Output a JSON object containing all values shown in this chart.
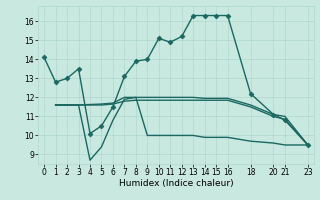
{
  "xlabel": "Humidex (Indice chaleur)",
  "background_color": "#c8e8e0",
  "grid_color": "#b0d8d0",
  "line_color": "#1a6860",
  "xlim": [
    -0.5,
    23.5
  ],
  "ylim": [
    8.5,
    16.8
  ],
  "yticks": [
    9,
    10,
    11,
    12,
    13,
    14,
    15,
    16
  ],
  "xticks": [
    0,
    1,
    2,
    3,
    4,
    5,
    6,
    7,
    8,
    9,
    10,
    11,
    12,
    13,
    14,
    15,
    16,
    18,
    20,
    21,
    23
  ],
  "lines": [
    {
      "x": [
        0,
        1,
        2,
        3,
        4,
        5,
        6,
        7,
        8,
        9,
        10,
        11,
        12,
        13,
        14,
        15,
        16,
        18,
        20,
        21,
        23
      ],
      "y": [
        14.1,
        12.8,
        13.0,
        13.5,
        10.1,
        10.5,
        11.5,
        13.1,
        13.9,
        14.0,
        15.1,
        14.9,
        15.2,
        16.3,
        16.3,
        16.3,
        16.3,
        12.2,
        11.1,
        10.8,
        9.5
      ],
      "marker": "D",
      "markersize": 2.5,
      "linewidth": 1.0
    },
    {
      "x": [
        1,
        2,
        3,
        4,
        5,
        6,
        7,
        8,
        9,
        10,
        11,
        12,
        13,
        14,
        15,
        16,
        18,
        20,
        21,
        23
      ],
      "y": [
        11.6,
        11.6,
        11.6,
        8.7,
        9.4,
        10.8,
        11.9,
        12.0,
        10.0,
        10.0,
        10.0,
        10.0,
        10.0,
        9.9,
        9.9,
        9.9,
        9.7,
        9.6,
        9.5,
        9.5
      ],
      "marker": null,
      "markersize": 0,
      "linewidth": 1.0
    },
    {
      "x": [
        1,
        2,
        3,
        5,
        6,
        7,
        8,
        9,
        10,
        11,
        12,
        13,
        14,
        15,
        16,
        18,
        20,
        21,
        23
      ],
      "y": [
        11.6,
        11.6,
        11.6,
        11.65,
        11.7,
        12.0,
        12.0,
        12.0,
        12.0,
        12.0,
        12.0,
        12.0,
        11.95,
        11.95,
        11.95,
        11.6,
        11.1,
        11.0,
        9.5
      ],
      "marker": null,
      "markersize": 0,
      "linewidth": 1.0
    },
    {
      "x": [
        1,
        2,
        3,
        5,
        6,
        7,
        8,
        9,
        10,
        11,
        12,
        13,
        14,
        15,
        16,
        18,
        20,
        21,
        23
      ],
      "y": [
        11.6,
        11.6,
        11.6,
        11.6,
        11.65,
        11.8,
        11.85,
        11.85,
        11.85,
        11.85,
        11.85,
        11.85,
        11.85,
        11.85,
        11.85,
        11.5,
        11.0,
        10.85,
        9.5
      ],
      "marker": null,
      "markersize": 0,
      "linewidth": 1.0
    }
  ]
}
